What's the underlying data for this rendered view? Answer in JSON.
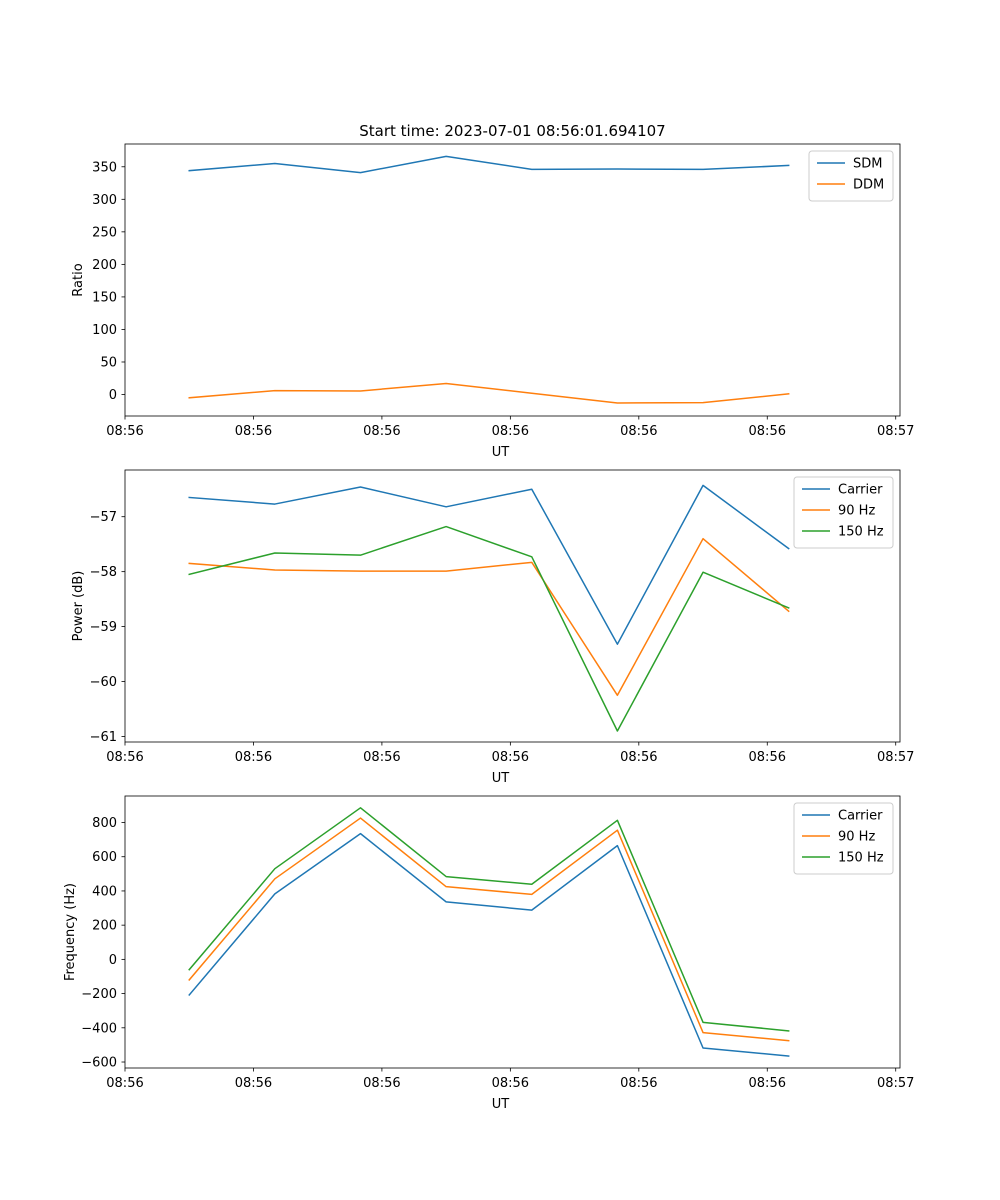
{
  "figure_title": "Start time: 2023-07-01 08:56:01.694107",
  "colors": {
    "blue": "#1f77b4",
    "orange": "#ff7f0e",
    "green": "#2ca02c",
    "axis": "#000000"
  },
  "chart_data": [
    {
      "type": "line",
      "title": "Start time: 2023-07-01 08:56:01.694107",
      "xlabel": "UT",
      "ylabel": "Ratio",
      "x": [
        0,
        1,
        2,
        3,
        4,
        5,
        6,
        7
      ],
      "xlim": [
        -0.75,
        8.3
      ],
      "ylim": [
        -33,
        385
      ],
      "xticks": [
        -0.75,
        0.75,
        2.25,
        3.75,
        5.25,
        6.75,
        8.25
      ],
      "xtick_labels": [
        "08:56",
        "08:56",
        "08:56",
        "08:56",
        "08:56",
        "08:56",
        "08:57"
      ],
      "yticks": [
        0,
        50,
        100,
        150,
        200,
        250,
        300,
        350
      ],
      "ytick_labels": [
        "0",
        "50",
        "100",
        "150",
        "200",
        "250",
        "300",
        "350"
      ],
      "legend": "top-right",
      "series": [
        {
          "name": "SDM",
          "color": "#1f77b4",
          "values": [
            344,
            355,
            341,
            366,
            346,
            346.5,
            346,
            352
          ]
        },
        {
          "name": "DDM",
          "color": "#ff7f0e",
          "values": [
            -5,
            6,
            5.5,
            17,
            2,
            -13,
            -12.5,
            1
          ]
        }
      ]
    },
    {
      "type": "line",
      "title": "",
      "xlabel": "UT",
      "ylabel": "Power (dB)",
      "x": [
        0,
        1,
        2,
        3,
        4,
        5,
        6,
        7
      ],
      "xlim": [
        -0.75,
        8.3
      ],
      "ylim": [
        -61.1,
        -56.15
      ],
      "xticks": [
        -0.75,
        0.75,
        2.25,
        3.75,
        5.25,
        6.75,
        8.25
      ],
      "xtick_labels": [
        "08:56",
        "08:56",
        "08:56",
        "08:56",
        "08:56",
        "08:56",
        "08:57"
      ],
      "yticks": [
        -61,
        -60,
        -59,
        -58,
        -57
      ],
      "ytick_labels": [
        "−61",
        "−60",
        "−59",
        "−58",
        "−57"
      ],
      "legend": "top-right",
      "series": [
        {
          "name": "Carrier",
          "color": "#1f77b4",
          "values": [
            -56.65,
            -56.77,
            -56.46,
            -56.82,
            -56.5,
            -59.32,
            -56.43,
            -57.58
          ]
        },
        {
          "name": "90 Hz",
          "color": "#ff7f0e",
          "values": [
            -57.85,
            -57.97,
            -57.99,
            -57.99,
            -57.83,
            -60.25,
            -57.4,
            -58.72
          ]
        },
        {
          "name": "150 Hz",
          "color": "#2ca02c",
          "values": [
            -58.05,
            -57.66,
            -57.7,
            -57.18,
            -57.73,
            -60.9,
            -58.01,
            -58.66
          ]
        }
      ]
    },
    {
      "type": "line",
      "title": "",
      "xlabel": "UT",
      "ylabel": "Frequency (Hz)",
      "x": [
        0,
        1,
        2,
        3,
        4,
        5,
        6,
        7
      ],
      "xlim": [
        -0.75,
        8.3
      ],
      "ylim": [
        -635,
        955
      ],
      "xticks": [
        -0.75,
        0.75,
        2.25,
        3.75,
        5.25,
        6.75,
        8.25
      ],
      "xtick_labels": [
        "08:56",
        "08:56",
        "08:56",
        "08:56",
        "08:56",
        "08:56",
        "08:57"
      ],
      "yticks": [
        -600,
        -400,
        -200,
        0,
        200,
        400,
        600,
        800
      ],
      "ytick_labels": [
        "−600",
        "−400",
        "−200",
        "0",
        "200",
        "400",
        "600",
        "800"
      ],
      "legend": "top-right",
      "series": [
        {
          "name": "Carrier",
          "color": "#1f77b4",
          "values": [
            -208,
            383,
            735,
            336,
            288,
            665,
            -518,
            -565
          ]
        },
        {
          "name": "90 Hz",
          "color": "#ff7f0e",
          "values": [
            -120,
            471,
            826,
            425,
            380,
            755,
            -428,
            -475
          ]
        },
        {
          "name": "150 Hz",
          "color": "#2ca02c",
          "values": [
            -60,
            530,
            886,
            484,
            439,
            813,
            -368,
            -418
          ]
        }
      ]
    }
  ]
}
